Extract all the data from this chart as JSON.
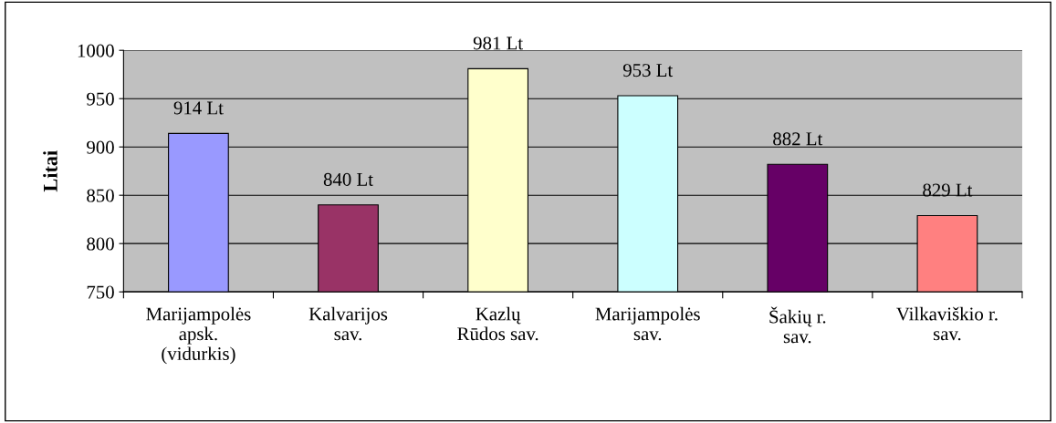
{
  "chart_data": {
    "type": "bar",
    "ylabel": "Litai",
    "categories": [
      "Marijampolės\napsk.\n(vidurkis)",
      "Kalvarijos\nsav.",
      "Kazlų\nRūdos sav.",
      "Marijampolės\nsav.",
      "Šakių r.\nsav.",
      "Vilkaviškio r.\nsav."
    ],
    "values": [
      914,
      840,
      981,
      953,
      882,
      829
    ],
    "colors": [
      "#9999ff",
      "#993366",
      "#ffffcc",
      "#ccffff",
      "#660066",
      "#ff8080"
    ],
    "value_labels": [
      "914 Lt",
      "840 Lt",
      "981 Lt",
      "953 Lt",
      "882 Lt",
      "829 Lt"
    ],
    "ylim": [
      750,
      1000
    ],
    "yticks": [
      750,
      800,
      850,
      900,
      950,
      1000
    ],
    "grid": "y",
    "legend": false
  }
}
